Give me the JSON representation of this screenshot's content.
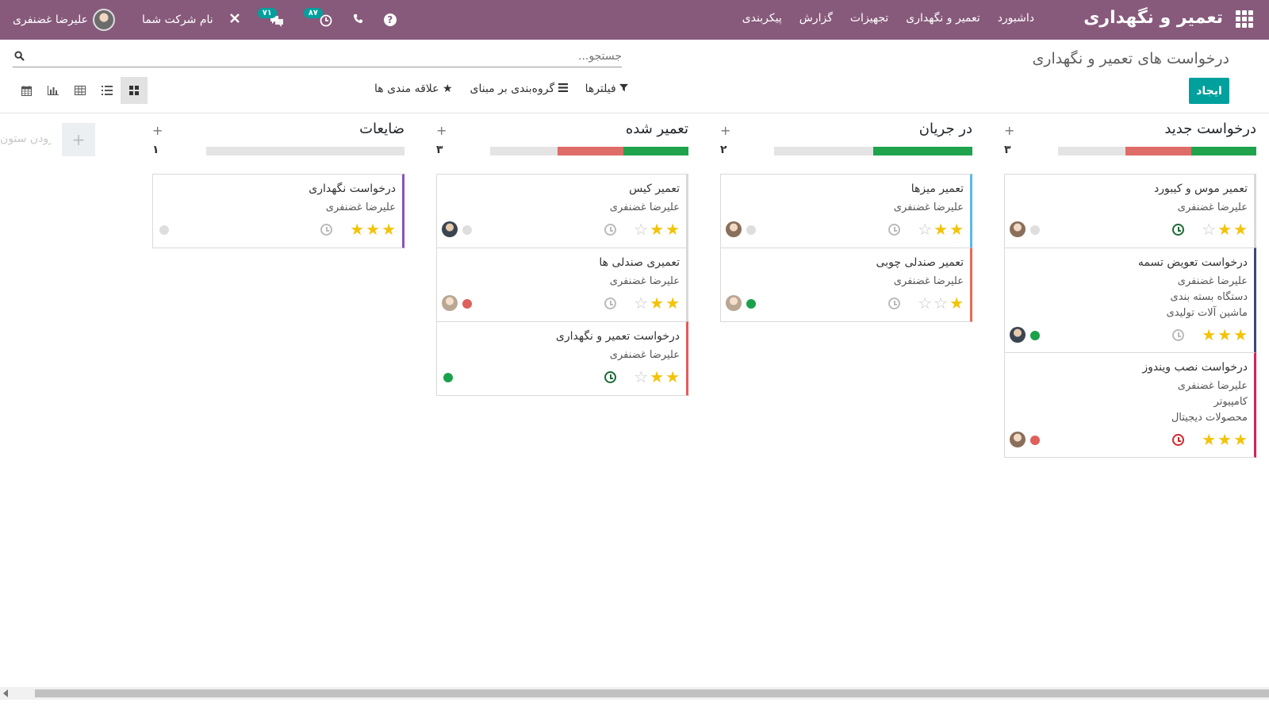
{
  "navbar": {
    "brand": "تعمیر و نگهداری",
    "menu": [
      "داشبورد",
      "تعمیر و نگهداری",
      "تجهیزات",
      "گزارش",
      "پیکربندی"
    ],
    "user_name": "علیرضا غضنفری",
    "company": "نام شرکت شما",
    "activity_badge": "۸۷",
    "messages_badge": "۷۱",
    "help": "?"
  },
  "control_panel": {
    "title": "درخواست های تعمیر و نگهداری",
    "search_placeholder": "جستجو...",
    "create_label": "ایجاد",
    "filters_label": "فیلترها",
    "groupby_label": "گروه‌بندی بر مبنای",
    "favorites_label": "علاقه مندی ها"
  },
  "kanban": {
    "add_column_label": "افزودن ستون",
    "columns": [
      {
        "title": "درخواست جدید",
        "count": "۳",
        "progress": {
          "done": 0.33,
          "blocked": 0.33
        },
        "cards": [
          {
            "title": "تعمیر موس و کیبورد",
            "lines": [
              "علیرضا غضنفری"
            ],
            "stars": 2,
            "activity": "green",
            "state": "normal",
            "accent": "#ffffff",
            "avatar": "light"
          },
          {
            "title": "درخواست تعویض تسمه",
            "lines": [
              "علیرضا غضنفری",
              "دستگاه بسته بندی",
              "ماشین آلات تولیدی"
            ],
            "stars": 3,
            "activity": "grey",
            "state": "green",
            "accent": "#3a4a72",
            "avatar": "dark"
          },
          {
            "title": "درخواست نصب ویندوز",
            "lines": [
              "علیرضا غضنفری",
              "کامپیوتر",
              "محصولات دیجیتال"
            ],
            "stars": 3,
            "activity": "red",
            "state": "red",
            "accent": "#d4235a",
            "avatar": "light"
          }
        ]
      },
      {
        "title": "در جریان",
        "count": "۲",
        "progress": {
          "done": 0.5,
          "blocked": 0
        },
        "cards": [
          {
            "title": "تعمیر میزها",
            "lines": [
              "علیرضا غضنفری"
            ],
            "stars": 2,
            "activity": "grey",
            "state": "normal",
            "accent": "#5cb8e6",
            "avatar": "light"
          },
          {
            "title": "تعمیر صندلی چوبی",
            "lines": [
              "علیرضا غضنفری"
            ],
            "stars": 1,
            "activity": "grey",
            "state": "green",
            "accent": "#e86a55",
            "avatar": "mid"
          }
        ]
      },
      {
        "title": "تعمیر شده",
        "count": "۳",
        "progress": {
          "done": 0.33,
          "blocked": 0.33
        },
        "cards": [
          {
            "title": "تعمیر کیس",
            "lines": [
              "علیرضا غضنفری"
            ],
            "stars": 2,
            "activity": "grey",
            "state": "normal",
            "accent": "#ffffff",
            "avatar": "dark"
          },
          {
            "title": "تعمیری صندلی ها",
            "lines": [
              "علیرضا غضنفری"
            ],
            "stars": 2,
            "activity": "grey",
            "state": "red",
            "accent": "#ffffff",
            "avatar": "mid"
          },
          {
            "title": "درخواست تعمیر و نگهداری",
            "lines": [
              "علیرضا غضنفری"
            ],
            "stars": 2,
            "activity": "green",
            "state": "green",
            "accent": "#e85a55",
            "avatar": "none"
          }
        ]
      },
      {
        "title": "ضایعات",
        "count": "۱",
        "progress": {
          "done": 0,
          "blocked": 0
        },
        "cards": [
          {
            "title": "درخواست نگهداری",
            "lines": [
              "علیرضا غضنفری"
            ],
            "stars": 3,
            "activity": "grey",
            "state": "normal",
            "accent": "#8a53b6",
            "avatar": "none"
          }
        ]
      }
    ]
  }
}
